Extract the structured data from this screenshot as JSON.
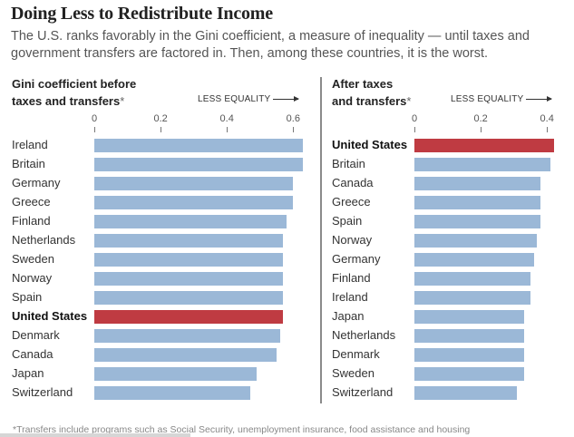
{
  "header": {
    "title": "Doing Less to Redistribute Income",
    "subtitle": "The U.S. ranks favorably in the Gini coefficient, a measure of inequality — until taxes and government transfers are factored in. Then, among these countries, it is the worst."
  },
  "colors": {
    "bar_default": "#9bb8d7",
    "bar_highlight": "#bf3b42"
  },
  "footnote": "*Transfers include programs such as Social Security, unemployment insurance, food assistance and housing",
  "chart_data": [
    {
      "type": "bar",
      "orientation": "horizontal",
      "title_line1": "Gini coefficient before",
      "title_line2": "taxes and transfers",
      "title_star": "*",
      "axis_note": "LESS EQUALITY",
      "xlim": [
        0,
        0.63
      ],
      "ticks": [
        "0",
        "0.2",
        "0.4",
        "0.6"
      ],
      "tick_values": [
        0,
        0.2,
        0.4,
        0.6
      ],
      "highlight": "United States",
      "categories": [
        "Ireland",
        "Britain",
        "Germany",
        "Greece",
        "Finland",
        "Netherlands",
        "Sweden",
        "Norway",
        "Spain",
        "United States",
        "Denmark",
        "Canada",
        "Japan",
        "Switzerland"
      ],
      "values": [
        0.63,
        0.63,
        0.6,
        0.6,
        0.58,
        0.57,
        0.57,
        0.57,
        0.57,
        0.57,
        0.56,
        0.55,
        0.49,
        0.47
      ]
    },
    {
      "type": "bar",
      "orientation": "horizontal",
      "title_line1": "After taxes",
      "title_line2": "and transfers",
      "title_star": "*",
      "axis_note": "LESS EQUALITY",
      "xlim": [
        0,
        0.42
      ],
      "ticks": [
        "0",
        "0.2",
        "0.4"
      ],
      "tick_values": [
        0,
        0.2,
        0.4
      ],
      "highlight": "United States",
      "categories": [
        "United States",
        "Britain",
        "Canada",
        "Greece",
        "Spain",
        "Norway",
        "Germany",
        "Finland",
        "Ireland",
        "Japan",
        "Netherlands",
        "Denmark",
        "Sweden",
        "Switzerland"
      ],
      "values": [
        0.42,
        0.41,
        0.38,
        0.38,
        0.38,
        0.37,
        0.36,
        0.35,
        0.35,
        0.33,
        0.33,
        0.33,
        0.33,
        0.31
      ]
    }
  ]
}
